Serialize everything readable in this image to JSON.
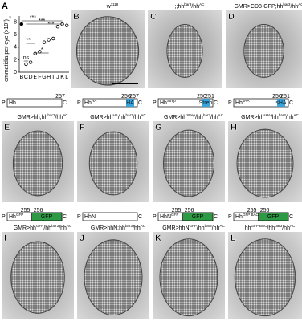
{
  "chart_data": {
    "type": "scatter",
    "panel": "A",
    "symbol": "♀",
    "y_label": "ommatidia per eye (x10²)",
    "categories": [
      "B",
      "C",
      "D",
      "E",
      "F",
      "G",
      "H",
      "I",
      "J",
      "K",
      "L"
    ],
    "values": [
      7.7,
      1.3,
      1.6,
      3.0,
      3.3,
      4.8,
      5.2,
      5.4,
      7.3,
      7.7,
      7.5
    ],
    "color": "#000000",
    "ylim": [
      0,
      9
    ],
    "yticks": [
      0,
      2,
      4,
      6,
      8
    ],
    "annotations": [
      "***",
      "***",
      "***",
      "**",
      "*",
      "ns"
    ]
  },
  "panels": [
    {
      "letter": "B",
      "genotype": [
        "w",
        "1118"
      ]
    },
    {
      "letter": "C",
      "genotype": [
        ";;hh",
        "bar3",
        "/hh",
        "AC"
      ]
    },
    {
      "letter": "D",
      "genotype": [
        "GMR>CD8-GFP;hh",
        "bar3",
        "/hh",
        "AC"
      ]
    },
    {
      "letter": "E",
      "genotype": [
        "GMR>hh;hh",
        "bar3",
        "/hh",
        "AC"
      ]
    },
    {
      "letter": "F",
      "genotype": [
        "GMR>hh",
        "HA",
        "/hh",
        "bar3",
        "/hh",
        "AC"
      ]
    },
    {
      "letter": "G",
      "genotype": [
        "GMR>hh",
        "Strep",
        "/hh",
        "bar3",
        "/hh",
        "AC"
      ]
    },
    {
      "letter": "H",
      "genotype": [
        "GMR>hh",
        "sHA",
        "/hh",
        "bar3",
        "/hh",
        "AC"
      ]
    },
    {
      "letter": "I",
      "genotype": [
        "GMR>hh",
        "GFP",
        "/hh",
        "bar3",
        "/hh",
        "AC"
      ]
    },
    {
      "letter": "J",
      "genotype": [
        "GMR>hhN;hh",
        "bar3",
        "/hh",
        "AC"
      ]
    },
    {
      "letter": "K",
      "genotype": [
        "GMR>hhN",
        "GFP",
        "/hh",
        "bar3",
        "/hh",
        "AC"
      ]
    },
    {
      "letter": "L",
      "genotype": [
        "hh",
        "GFP BAC",
        "/hh",
        "bar3",
        "/hh",
        "AC"
      ]
    }
  ],
  "constructs": [
    {
      "start": "P",
      "label": [
        "Hh"
      ],
      "end": "C",
      "numbers": [
        "257"
      ]
    },
    {
      "start": "P",
      "label": [
        "Hh",
        "HA"
      ],
      "end": "C",
      "numbers": [
        "256",
        "257"
      ],
      "tag": "HA"
    },
    {
      "start": "P",
      "label": [
        "Hh",
        "Strep"
      ],
      "end": "C",
      "numbers": [
        "250",
        "251"
      ],
      "tag": "Strep"
    },
    {
      "start": "P",
      "label": [
        "Hh",
        "sHA"
      ],
      "end": "C",
      "numbers": [
        "250",
        "251"
      ],
      "tag": "sHA"
    },
    {
      "start": "P",
      "label": [
        "Hh",
        "GFP"
      ],
      "end": "C",
      "numbers": [
        "255",
        "256"
      ],
      "gfp": "GFP"
    },
    {
      "start": "P",
      "label": [
        "HhN"
      ],
      "end": "C",
      "numbers": []
    },
    {
      "start": "P",
      "label": [
        "HhN",
        "GFP"
      ],
      "end": "C",
      "numbers": [
        "255",
        "256"
      ],
      "gfp": "GFP"
    },
    {
      "start": "P",
      "label": [
        "Hh",
        "GFP BAC"
      ],
      "end": "C",
      "numbers": [
        "255",
        "256"
      ],
      "gfp": "GFP"
    }
  ]
}
